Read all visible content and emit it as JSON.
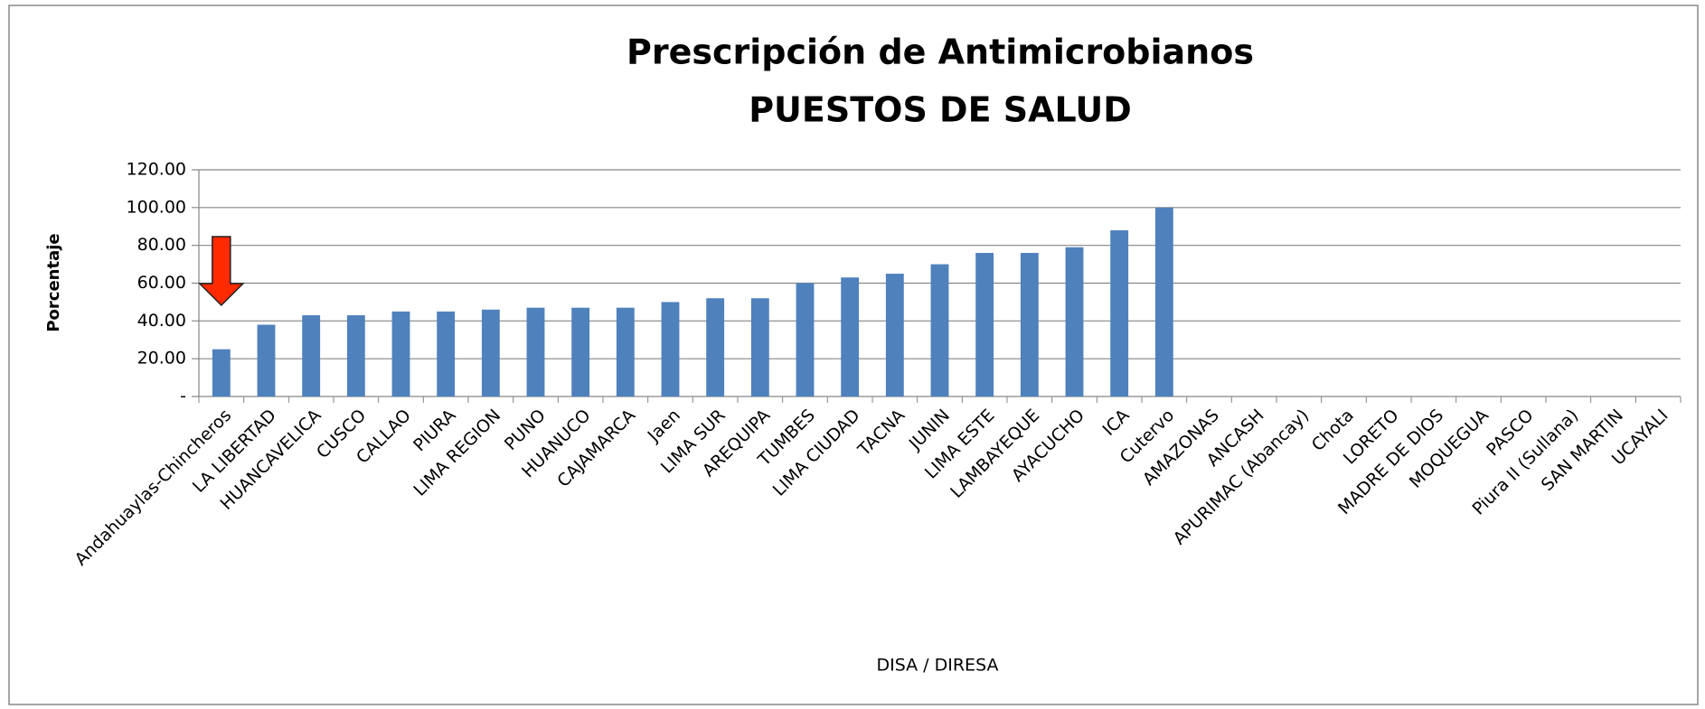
{
  "chart_data": {
    "type": "bar",
    "title": "Prescripción de Antimicrobianos",
    "subtitle": "PUESTOS DE SALUD",
    "y_label": "Porcentaje",
    "x_label": "DISA / DIRESA",
    "categories": [
      "Andahuaylas-Chincheros",
      "LA LIBERTAD",
      "HUANCAVELICA",
      "CUSCO",
      "CALLAO",
      "PIURA",
      "LIMA REGION",
      "PUNO",
      "HUANUCO",
      "CAJAMARCA",
      "Jaen",
      "LIMA SUR",
      "AREQUIPA",
      "TUMBES",
      "LIMA CIUDAD",
      "TACNA",
      "JUNIN",
      "LIMA ESTE",
      "LAMBAYEQUE",
      "AYACUCHO",
      "ICA",
      "Cutervo",
      "AMAZONAS",
      "ANCASH",
      "APURIMAC (Abancay)",
      "Chota",
      "LORETO",
      "MADRE DE DIOS",
      "MOQUEGUA",
      "PASCO",
      "Piura II (Sullana)",
      "SAN MARTIN",
      "UCAYALI"
    ],
    "values": [
      25,
      38,
      43,
      43,
      45,
      45,
      46,
      47,
      47,
      47,
      50,
      52,
      52,
      60,
      63,
      65,
      70,
      76,
      76,
      79,
      88,
      100,
      null,
      null,
      null,
      null,
      null,
      null,
      null,
      null,
      null,
      null,
      null
    ],
    "color": "#4f81bd",
    "ylim": [
      0,
      120
    ],
    "yticks": [
      {
        "value": 0,
        "label": "-"
      },
      {
        "value": 20,
        "label": "20.00"
      },
      {
        "value": 40,
        "label": "40.00"
      },
      {
        "value": 60,
        "label": "60.00"
      },
      {
        "value": 80,
        "label": "80.00"
      },
      {
        "value": 100,
        "label": "100.00"
      },
      {
        "value": 120,
        "label": "120.00"
      }
    ],
    "grid": true
  }
}
